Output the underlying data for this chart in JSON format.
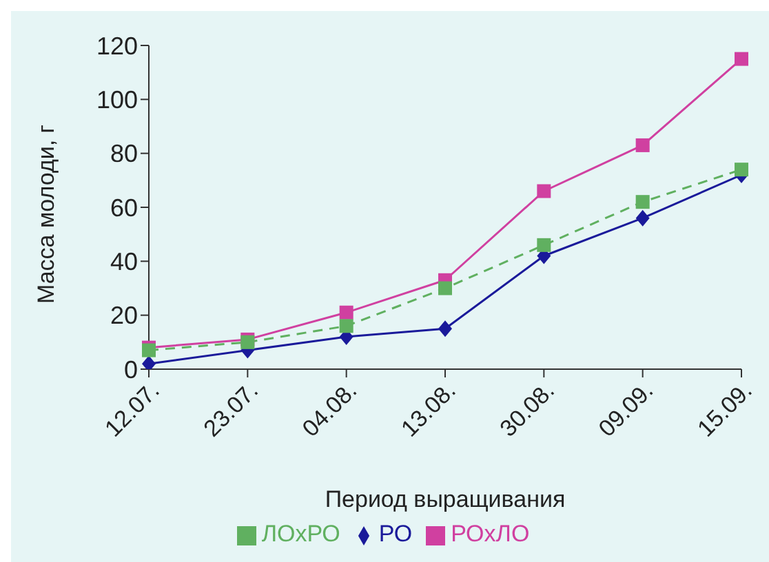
{
  "chart_data": {
    "type": "line",
    "xlabel": "Период выращивания",
    "ylabel": "Масса молоди, г",
    "categories": [
      "12.07.",
      "23.07.",
      "04.08.",
      "13.08.",
      "30.08.",
      "09.09.",
      "15.09."
    ],
    "series": [
      {
        "name": "РО",
        "color": "#1a1a9a",
        "values": [
          2,
          7,
          12,
          15,
          42,
          56,
          72
        ],
        "marker": "diamond",
        "line_style": "solid"
      },
      {
        "name": "РОxЛО",
        "color": "#d040a0",
        "values": [
          8,
          11,
          21,
          33,
          66,
          83,
          115
        ],
        "marker": "square",
        "line_style": "solid"
      },
      {
        "name": "ЛОxРО",
        "color": "#60b060",
        "values": [
          7,
          10,
          16,
          30,
          46,
          62,
          74
        ],
        "marker": "square",
        "line_style": "dashed"
      }
    ],
    "ylim": [
      0,
      120
    ],
    "yticks": [
      0,
      20,
      40,
      60,
      80,
      100,
      120
    ],
    "grid": false,
    "legend": "bottom"
  }
}
